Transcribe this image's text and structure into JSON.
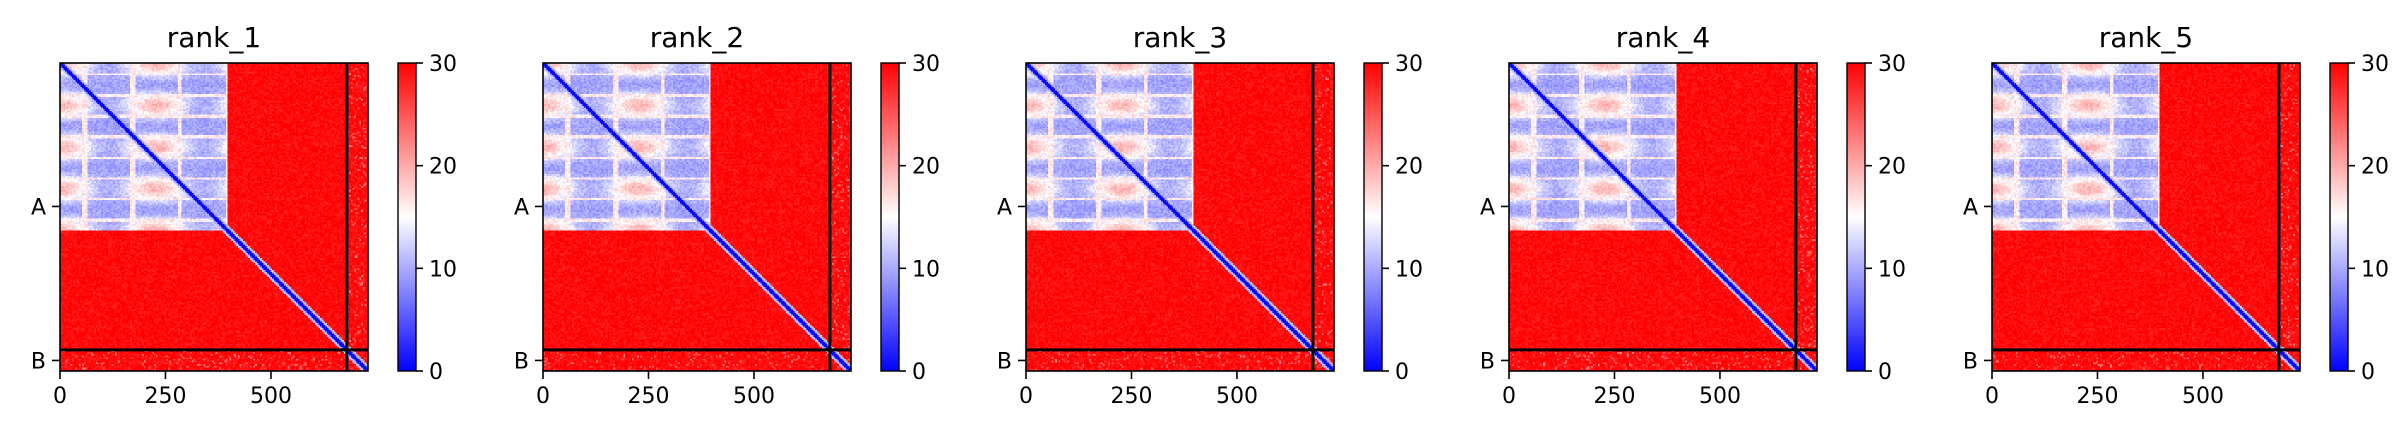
{
  "chart_data": {
    "type": "heatmap",
    "metric_unit": "",
    "colormap": {
      "low": "#0000ff",
      "mid": "#ffffff",
      "high": "#ff0000"
    },
    "colorbar": {
      "min": 0,
      "max": 30,
      "ticks": [
        "0",
        "10",
        "20",
        "30"
      ]
    },
    "x_ticks": [
      "0",
      "250",
      "500"
    ],
    "x_tick_values": [
      0,
      250,
      500
    ],
    "x_range": [
      0,
      730
    ],
    "chains": [
      {
        "label": "A",
        "start": 0,
        "end": 680
      },
      {
        "label": "B",
        "start": 680,
        "end": 730
      }
    ],
    "structured_block": [
      0,
      395
    ],
    "panels": [
      {
        "title": "rank_1"
      },
      {
        "title": "rank_2"
      },
      {
        "title": "rank_3"
      },
      {
        "title": "rank_4"
      },
      {
        "title": "rank_5"
      }
    ]
  }
}
